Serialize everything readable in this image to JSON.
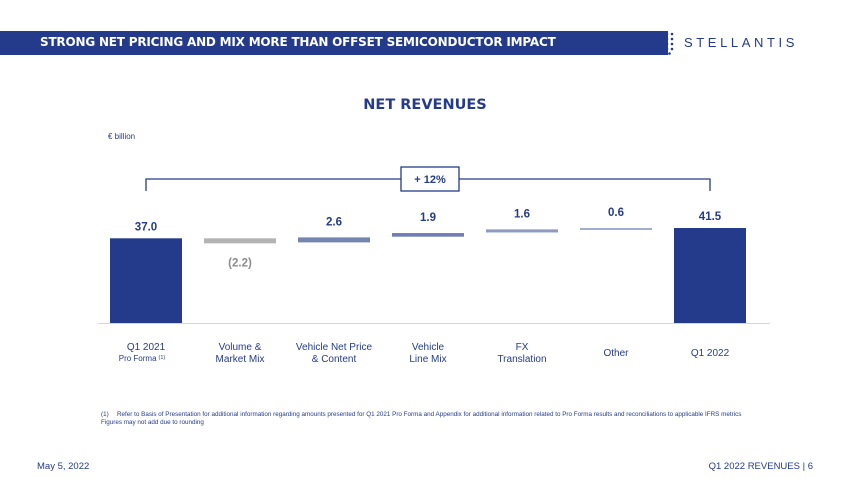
{
  "header": {
    "title": "STRONG NET PRICING AND MIX MORE THAN OFFSET SEMICONDUCTOR IMPACT",
    "logo_text": "STELLANTIS",
    "bar_color": "#243b8c"
  },
  "unit_label": "€ billion",
  "chart_data": {
    "type": "bar",
    "subtype": "waterfall",
    "title": "NET REVENUES",
    "ylabel": "€ billion",
    "categories": [
      {
        "line1": "Q1 2021",
        "line2": "Pro Forma",
        "sup": "(1)",
        "small_line2": true
      },
      {
        "line1": "Volume &",
        "line2": "Market Mix"
      },
      {
        "line1": "Vehicle Net Price",
        "line2": "& Content"
      },
      {
        "line1": "Vehicle",
        "line2": "Line Mix"
      },
      {
        "line1": "FX",
        "line2": "Translation"
      },
      {
        "line1": "Other",
        "line2": ""
      },
      {
        "line1": "Q1 2022",
        "line2": ""
      }
    ],
    "values": [
      37.0,
      -2.2,
      2.6,
      1.9,
      1.6,
      0.6,
      41.5
    ],
    "value_labels": [
      "37.0",
      "(2.2)",
      "2.6",
      "1.9",
      "1.6",
      "0.6",
      "41.5"
    ],
    "kinds": [
      "total",
      "delta",
      "delta",
      "delta",
      "delta",
      "delta",
      "total"
    ],
    "colors": {
      "total": "#243b8c",
      "negative": "#b3b3b3",
      "positive": [
        "#7684b4",
        "#6f7fb3",
        "#8f9bc4",
        "#a3adcd"
      ],
      "label_total": "#243b8c",
      "label_negative": "#8c8c8c"
    },
    "bracket_label": "+ 12%",
    "grid": false,
    "legend": "none"
  },
  "footnote": {
    "marker": "(1)",
    "text": "Refer to Basis of Presentation for additional information regarding amounts presented for Q1 2021 Pro Forma and Appendix for additional information related to Pro Forma results and reconciliations to applicable IFRS metrics",
    "rounding": "Figures may not add due to rounding"
  },
  "footer": {
    "date": "May 5, 2022",
    "page_info": "Q1 2022 REVENUES  |  6"
  }
}
